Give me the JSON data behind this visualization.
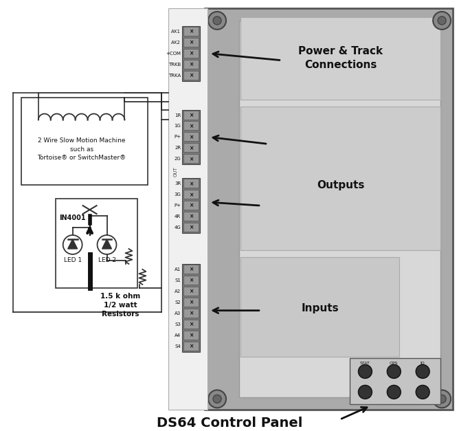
{
  "bg": "#ffffff",
  "board_outer_fc": "#aaaaaa",
  "board_outer_ec": "#555555",
  "board_inner_fc": "#d8d8d8",
  "board_inner_ec": "#999999",
  "screw_outer_fc": "#888888",
  "screw_outer_ec": "#444444",
  "screw_inner_fc": "#666666",
  "strip_bg_fc": "#f0f0f0",
  "strip_bg_ec": "#aaaaaa",
  "conn_block_fc": "#787878",
  "conn_block_ec": "#444444",
  "conn_screw_fc": "#999999",
  "conn_screw_ec": "#555555",
  "section_power_fc": "#d0d0d0",
  "section_outputs_fc": "#cccccc",
  "section_inputs_fc": "#c8c8c8",
  "section_ec": "#aaaaaa",
  "cp_box_fc": "#c4c4c4",
  "cp_box_ec": "#555555",
  "btn_fc": "#333333",
  "btn_ec": "#111111",
  "wire_color": "#222222",
  "thick_wire": "#111111",
  "title": "DS64 Control Panel",
  "power_label": "Power & Track\nConnections",
  "outputs_label": "Outputs",
  "inputs_label": "Inputs",
  "power_terms": [
    "AX1",
    "AX2",
    "+COM",
    "TRKB",
    "TRKA"
  ],
  "out1_terms": [
    "1R",
    "1G",
    "P+",
    "2R",
    "2G"
  ],
  "out2_terms": [
    "3R",
    "3G",
    "P+",
    "4R",
    "4G"
  ],
  "inp_terms": [
    "A1",
    "S1",
    "A2",
    "S2",
    "A3",
    "S3",
    "A4",
    "S4"
  ],
  "out_sep": "OUT",
  "btn_labels": [
    "STAT",
    "OPS",
    "ID"
  ],
  "coil_text": "2 Wire Slow Motion Machine\nsuch as\nTortoise® or SwitchMaster®",
  "diode_text": "IN4001",
  "led1_text": "LED 1",
  "led2_text": "LED 2",
  "res_text": "1.5 k ohm\n1/2 watt\nResistors"
}
